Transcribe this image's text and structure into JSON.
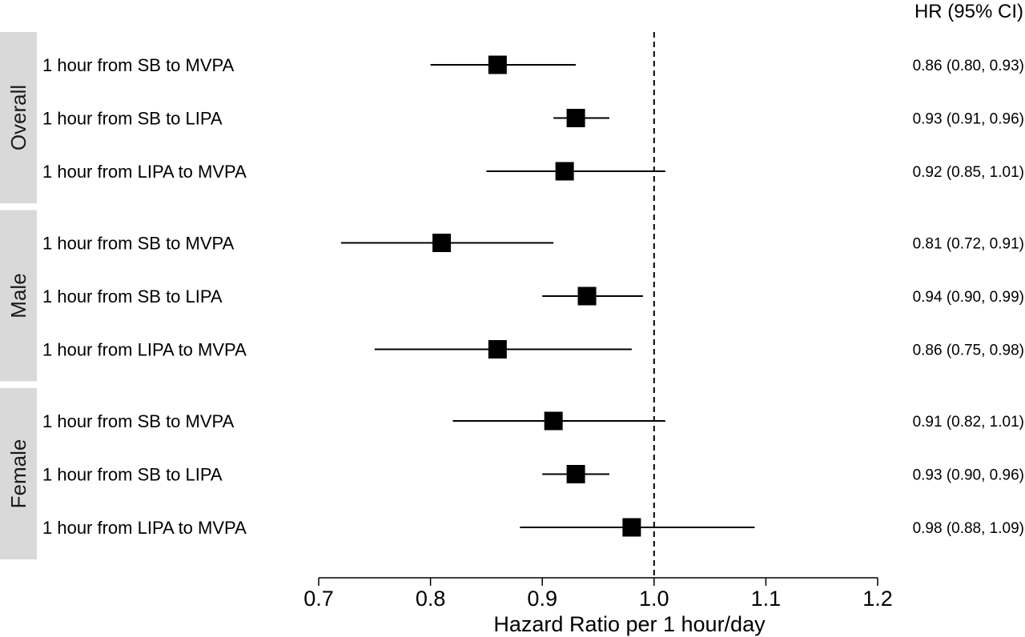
{
  "chart_data": {
    "type": "forest",
    "column_header": "HR (95% CI)",
    "xlabel": "Hazard Ratio per 1 hour/day",
    "xlim": [
      0.7,
      1.2
    ],
    "x_ticks": [
      0.7,
      0.8,
      0.9,
      1.0,
      1.1,
      1.2
    ],
    "x_tick_labels": [
      "0.7",
      "0.8",
      "0.9",
      "1.0",
      "1.1",
      "1.2"
    ],
    "reference_line": 1.0,
    "groups": [
      {
        "name": "Overall",
        "rows": [
          {
            "label": "1 hour from SB to MVPA",
            "hr": 0.86,
            "lower": 0.8,
            "upper": 0.93,
            "ci_text": "0.86 (0.80, 0.93)"
          },
          {
            "label": "1 hour from SB to LIPA",
            "hr": 0.93,
            "lower": 0.91,
            "upper": 0.96,
            "ci_text": "0.93 (0.91, 0.96)"
          },
          {
            "label": "1 hour from LIPA to MVPA",
            "hr": 0.92,
            "lower": 0.85,
            "upper": 1.01,
            "ci_text": "0.92 (0.85, 1.01)"
          }
        ]
      },
      {
        "name": "Male",
        "rows": [
          {
            "label": "1 hour from SB to MVPA",
            "hr": 0.81,
            "lower": 0.72,
            "upper": 0.91,
            "ci_text": "0.81 (0.72, 0.91)"
          },
          {
            "label": "1 hour from SB to LIPA",
            "hr": 0.94,
            "lower": 0.9,
            "upper": 0.99,
            "ci_text": "0.94 (0.90, 0.99)"
          },
          {
            "label": "1 hour from LIPA to MVPA",
            "hr": 0.86,
            "lower": 0.75,
            "upper": 0.98,
            "ci_text": "0.86 (0.75, 0.98)"
          }
        ]
      },
      {
        "name": "Female",
        "rows": [
          {
            "label": "1 hour from SB to MVPA",
            "hr": 0.91,
            "lower": 0.82,
            "upper": 1.01,
            "ci_text": "0.91 (0.82, 1.01)"
          },
          {
            "label": "1 hour from SB to LIPA",
            "hr": 0.93,
            "lower": 0.9,
            "upper": 0.96,
            "ci_text": "0.93 (0.90, 0.96)"
          },
          {
            "label": "1 hour from LIPA to MVPA",
            "hr": 0.98,
            "lower": 0.88,
            "upper": 1.09,
            "ci_text": "0.98 (0.88, 1.09)"
          }
        ]
      }
    ],
    "colors": {
      "strip_background": "#d9d9d9",
      "marker": "#000000",
      "line": "#000000"
    }
  }
}
